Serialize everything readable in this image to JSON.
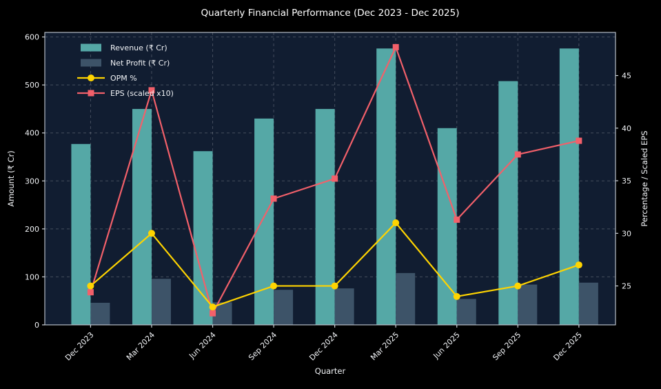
{
  "title": "Quarterly Financial Performance (Dec 2023 - Dec 2025)",
  "chart_data": {
    "type": "bar",
    "subtype": "grouped-bar-plus-line-combo",
    "categories": [
      "Dec 2023",
      "Mar 2024",
      "Jun 2024",
      "Sep 2024",
      "Dec 2024",
      "Mar 2025",
      "Jun 2025",
      "Sep 2025",
      "Dec 2025"
    ],
    "series": [
      {
        "name": "Revenue (₹ Cr)",
        "type": "bar",
        "axis": "left",
        "color": "#55a8a6",
        "values": [
          377,
          450,
          362,
          430,
          450,
          576,
          410,
          508,
          576
        ]
      },
      {
        "name": "Net Profit (₹ Cr)",
        "type": "bar",
        "axis": "left",
        "color": "#3d5368",
        "values": [
          46,
          96,
          47,
          73,
          76,
          108,
          54,
          84,
          88
        ]
      },
      {
        "name": "OPM %",
        "type": "line",
        "axis": "right",
        "color": "#ffd400",
        "marker": "circle",
        "values": [
          25,
          30,
          23,
          25,
          25,
          31,
          24,
          25,
          27
        ]
      },
      {
        "name": "EPS (scaled x10)",
        "type": "line",
        "axis": "right",
        "color": "#f2606a",
        "marker": "square",
        "values": [
          24.4,
          43.6,
          22.4,
          33.3,
          35.2,
          47.7,
          31.3,
          37.5,
          38.8
        ]
      }
    ],
    "xlabel": "Quarter",
    "ylabel_left": "Amount (₹ Cr)",
    "ylabel_right": "Percentage / Scaled EPS",
    "yticks_left": [
      0,
      100,
      200,
      300,
      400,
      500,
      600
    ],
    "yticks_right": [
      25,
      30,
      35,
      40,
      45
    ],
    "ylim_left": [
      0,
      609.5
    ],
    "ylim_right": [
      21.3,
      49.1
    ],
    "grid": true,
    "legend_position": "upper left",
    "x_tick_rotation": 45
  },
  "colors": {
    "figure_background": "#000000",
    "plot_background": "#111d31",
    "grid": "rgba(255,255,255,0.22)",
    "spine": "#b7bec8",
    "tick": "#cfd4da",
    "text": "#f2f4f7",
    "title_text": "#ffffff"
  }
}
